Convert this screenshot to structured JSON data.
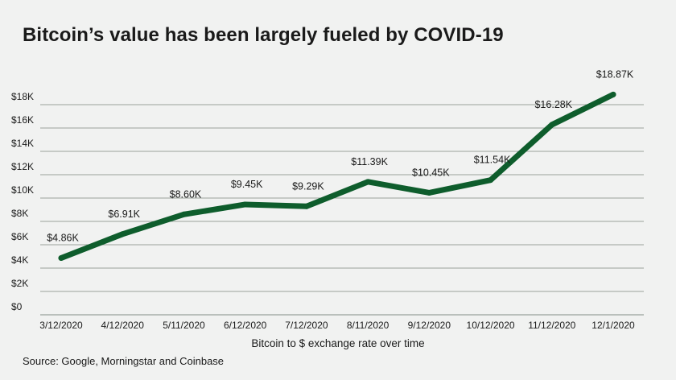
{
  "title": "Bitcoin’s value has been largely fueled by COVID-19",
  "source": "Source: Google, Morningstar and Coinbase",
  "colors": {
    "line": "#0e5d2c",
    "grid": "#9aa39c",
    "background": "#f1f2f1"
  },
  "chart_data": {
    "type": "line",
    "title": "Bitcoin’s value has been largely fueled by COVID-19",
    "xlabel": "Bitcoin to $ exchange rate over time",
    "ylabel": "",
    "ylim": [
      0,
      18000
    ],
    "yticks": [
      0,
      2000,
      4000,
      6000,
      8000,
      10000,
      12000,
      14000,
      16000,
      18000
    ],
    "ytick_labels": [
      "$0",
      "$2K",
      "$4K",
      "$6K",
      "$8K",
      "$10K",
      "$12K",
      "$14K",
      "$16K",
      "$18K"
    ],
    "grid": "horizontal",
    "categories": [
      "3/12/2020",
      "4/12/2020",
      "5/11/2020",
      "6/12/2020",
      "7/12/2020",
      "8/11/2020",
      "9/12/2020",
      "10/12/2020",
      "11/12/2020",
      "12/1/2020"
    ],
    "series": [
      {
        "values": [
          4860,
          6910,
          8600,
          9450,
          9290,
          11390,
          10450,
          11540,
          16280,
          18870
        ],
        "labels": [
          "$4.86K",
          "$6.91K",
          "$8.60K",
          "$9.45K",
          "$9.29K",
          "$11.39K",
          "$10.45K",
          "$11.54K",
          "$16.28K",
          "$18.87K"
        ]
      }
    ]
  }
}
